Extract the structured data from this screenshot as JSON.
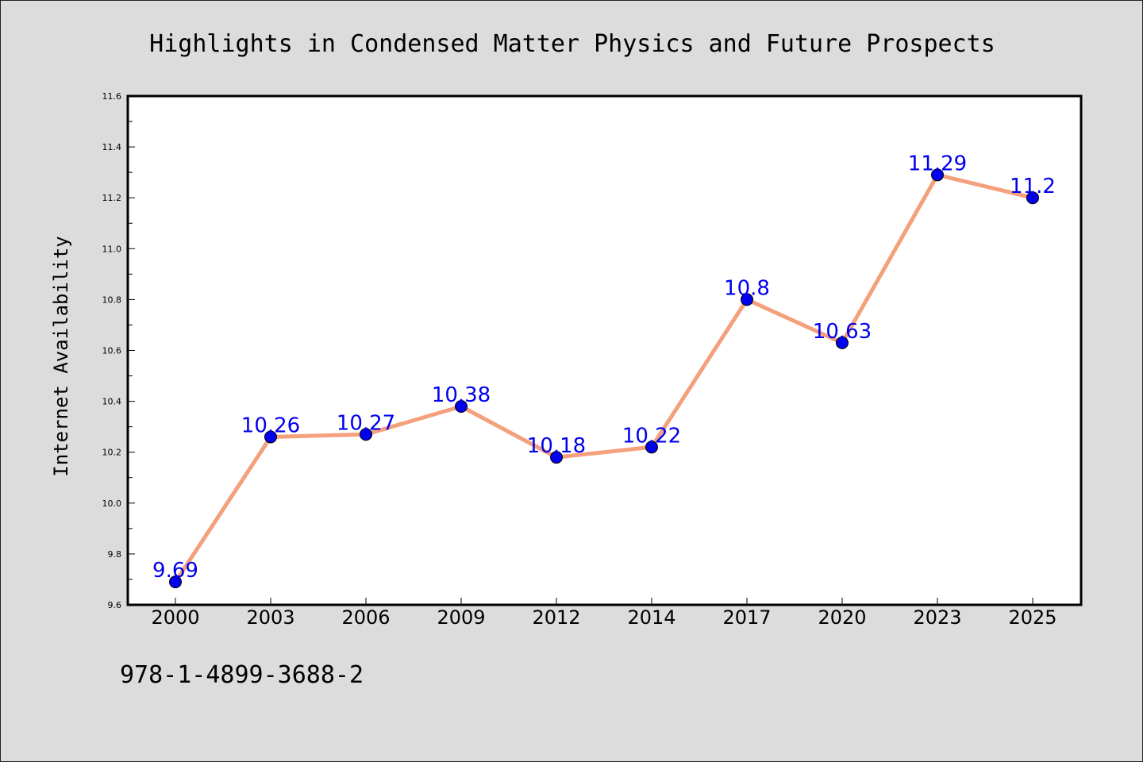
{
  "chart_data": {
    "type": "line",
    "title": "Highlights in Condensed Matter Physics and Future Prospects",
    "xlabel": "",
    "ylabel": "Internet Availability",
    "categories": [
      "2000",
      "2003",
      "2006",
      "2009",
      "2012",
      "2014",
      "2017",
      "2020",
      "2023",
      "2025"
    ],
    "series": [
      {
        "values": [
          9.69,
          10.26,
          10.27,
          10.38,
          10.18,
          10.22,
          10.8,
          10.63,
          11.29,
          11.2
        ],
        "labels": [
          "9.69",
          "10.26",
          "10.27",
          "10.38",
          "10.18",
          "10.22",
          "10.8",
          "10.63",
          "11.29",
          "11.2"
        ],
        "color": "#f4a07c",
        "marker_color": "#0000ee"
      }
    ],
    "ylim": [
      9.6,
      11.6
    ],
    "yticks": [
      "9.6",
      "9.8",
      "10.0",
      "10.2",
      "10.4",
      "10.6",
      "10.8",
      "11.0",
      "11.2",
      "11.4",
      "11.6"
    ],
    "grid": false,
    "legend": "none"
  },
  "footer": {
    "isbn": "978-1-4899-3688-2"
  }
}
